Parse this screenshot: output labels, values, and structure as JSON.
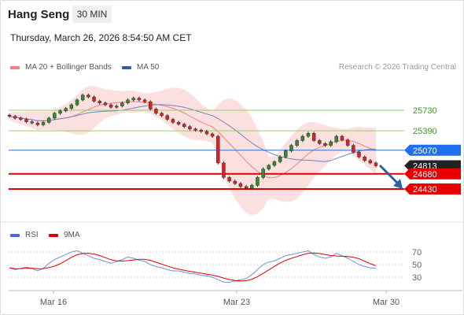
{
  "header": {
    "instrument": "Hang Seng",
    "timeframe": "30 MIN",
    "datetime": "Thursday, March 26, 2026 8:54:50 AM CET"
  },
  "legend": {
    "ma20_bb": {
      "label": "MA 20 + Bollinger Bands",
      "color": "#f08080"
    },
    "ma50": {
      "label": "MA 50",
      "color": "#2f5fa0"
    },
    "copyright": "Research © 2026 Trading Central"
  },
  "rsi_legend": {
    "rsi": {
      "label": "RSI",
      "color": "#4169e1"
    },
    "ma9": {
      "label": "9MA",
      "color": "#e00000"
    }
  },
  "chart_data": {
    "type": "candlestick",
    "levels": [
      {
        "value": 25730,
        "label": "25730",
        "style": "green-line"
      },
      {
        "value": 25390,
        "label": "25390",
        "style": "green-line"
      },
      {
        "value": 25070,
        "label": "25070",
        "style": "blue-box"
      },
      {
        "value": 24813,
        "label": "24813",
        "style": "dark-box"
      },
      {
        "value": 24680,
        "label": "24680",
        "style": "red-box"
      },
      {
        "value": 24430,
        "label": "24430",
        "style": "red-box"
      }
    ],
    "x_ticks": [
      "Mar 16",
      "Mar 23",
      "Mar 30"
    ],
    "rsi_ticks": [
      70,
      50,
      30
    ],
    "forecast_arrow": "down",
    "price_series": [
      25630,
      25600,
      25580,
      25540,
      25520,
      25490,
      25530,
      25600,
      25680,
      25720,
      25760,
      25820,
      25900,
      25980,
      25950,
      25880,
      25850,
      25820,
      25780,
      25800,
      25850,
      25900,
      25930,
      25900,
      25870,
      25750,
      25680,
      25640,
      25580,
      25530,
      25500,
      25460,
      25420,
      25400,
      25380,
      25340,
      25300,
      24860,
      24620,
      24560,
      24520,
      24470,
      24440,
      24490,
      24620,
      24760,
      24820,
      24880,
      24960,
      25060,
      25150,
      25230,
      25300,
      25350,
      25230,
      25180,
      25150,
      25210,
      25300,
      25240,
      25150,
      25040,
      24960,
      24900,
      24860,
      24813
    ],
    "rsi_series": [
      45,
      42,
      44,
      46,
      44,
      40,
      44,
      52,
      58,
      62,
      66,
      70,
      72,
      68,
      64,
      60,
      58,
      55,
      52,
      55,
      58,
      62,
      60,
      57,
      55,
      50,
      47,
      45,
      42,
      40,
      40,
      38,
      36,
      35,
      33,
      32,
      30,
      26,
      22,
      22,
      24,
      26,
      28,
      34,
      42,
      50,
      54,
      56,
      60,
      64,
      66,
      68,
      70,
      72,
      66,
      62,
      60,
      62,
      68,
      64,
      60,
      55,
      50,
      47,
      45,
      44
    ]
  }
}
